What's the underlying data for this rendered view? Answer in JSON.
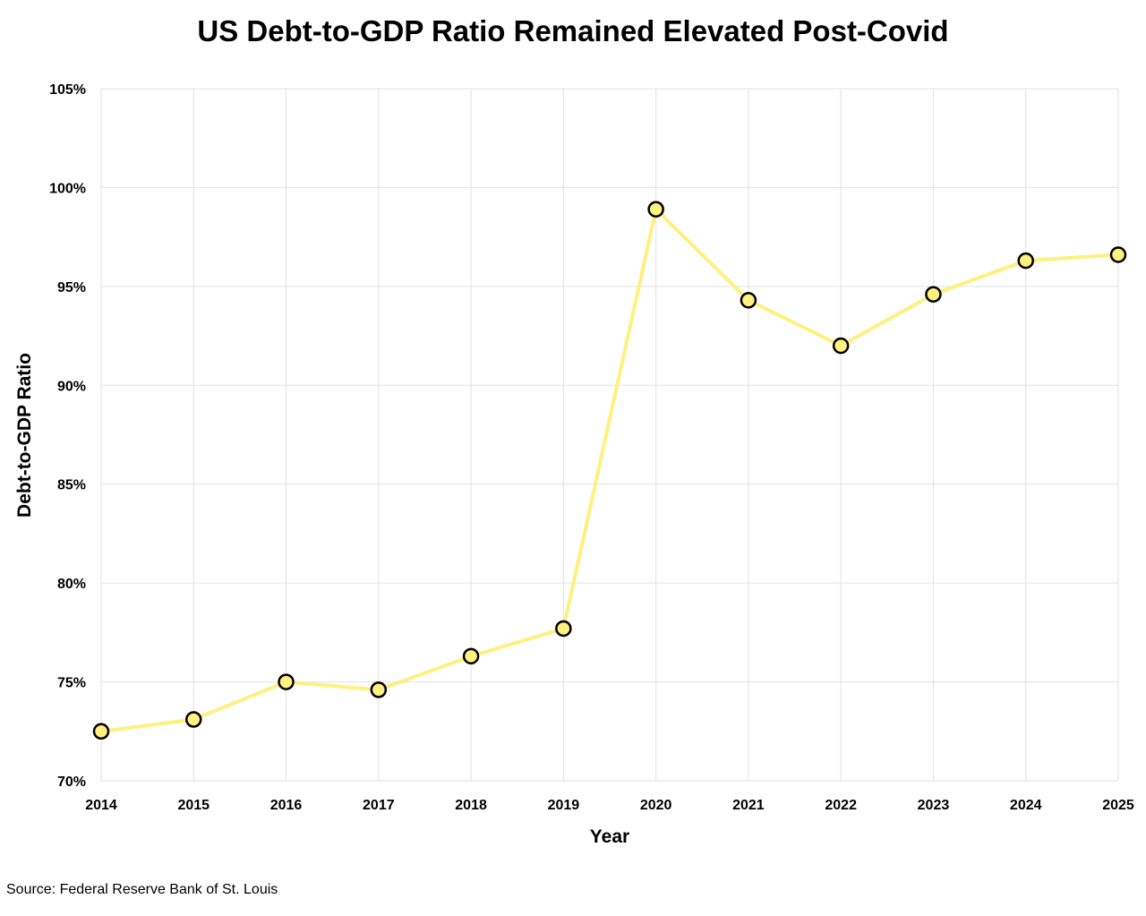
{
  "colors": {
    "line": "#FFF07F",
    "marker_fill": "#FFF07F",
    "marker_stroke": "#000000",
    "grid": "#e2e2e2",
    "text": "#000000"
  },
  "chart_data": {
    "type": "line",
    "title": "US Debt-to-GDP Ratio Remained Elevated Post-Covid",
    "xlabel": "Year",
    "ylabel": "Debt-to-GDP Ratio",
    "x": [
      2014,
      2015,
      2016,
      2017,
      2018,
      2019,
      2020,
      2021,
      2022,
      2023,
      2024,
      2025
    ],
    "x_tick_labels": [
      "2014",
      "2015",
      "2016",
      "2017",
      "2018",
      "2019",
      "2020",
      "2021",
      "2022",
      "2023",
      "2024",
      "2025"
    ],
    "series": [
      {
        "name": "Debt-to-GDP Ratio",
        "values": [
          72.5,
          73.1,
          75.0,
          74.6,
          76.3,
          77.7,
          98.9,
          94.3,
          92.0,
          94.6,
          96.3,
          96.6
        ]
      }
    ],
    "ylim": [
      70,
      105
    ],
    "y_ticks": [
      70,
      75,
      80,
      85,
      90,
      95,
      100,
      105
    ],
    "y_tick_labels": [
      "70%",
      "75%",
      "80%",
      "85%",
      "90%",
      "95%",
      "100%",
      "105%"
    ],
    "grid": true,
    "legend": "none"
  },
  "source": "Source: Federal Reserve Bank of St. Louis"
}
